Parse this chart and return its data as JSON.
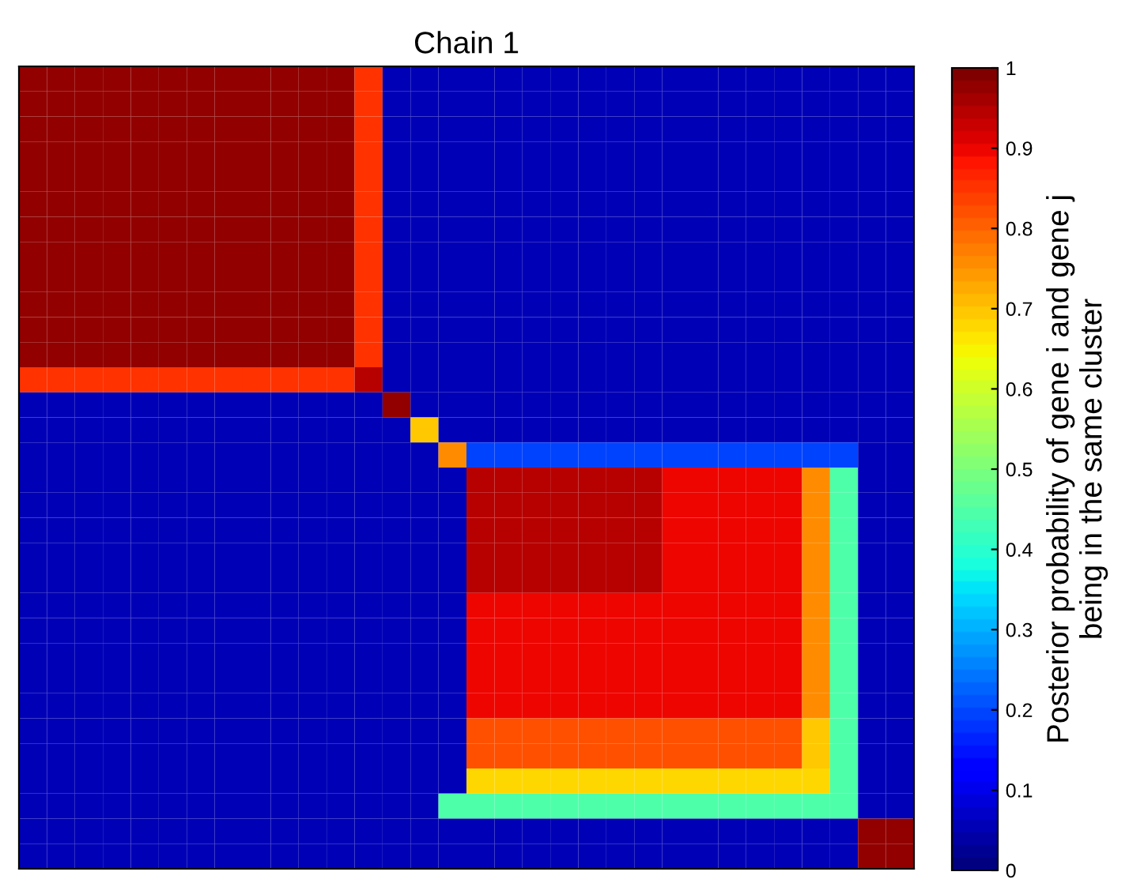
{
  "chart_data": {
    "type": "heatmap",
    "title": "Chain 1",
    "clabel": "Posterior probability of gene i and gene j\nbeing in the same cluster",
    "categories": [
      null,
      null,
      null,
      null,
      null,
      null,
      null,
      null,
      null,
      null,
      null,
      null,
      null,
      null,
      null,
      null,
      null,
      null,
      null,
      null,
      null,
      null,
      null,
      null,
      null,
      null,
      null,
      null,
      null,
      null,
      null,
      null
    ],
    "y_categories": [
      null,
      null,
      null,
      null,
      null,
      null,
      null,
      null,
      null,
      null,
      null,
      null,
      null,
      null,
      null,
      null,
      null,
      null,
      null,
      null,
      null,
      null,
      null,
      null,
      null,
      null,
      null,
      null,
      null,
      null,
      null,
      null
    ],
    "clim": [
      0,
      1
    ],
    "cticks": [
      0,
      0.1,
      0.2,
      0.3,
      0.4,
      0.5,
      0.6,
      0.7,
      0.8,
      0.9,
      1
    ],
    "tick_labels": false,
    "cells": [
      [
        0.97,
        0.97,
        0.97,
        0.97,
        0.97,
        0.97,
        0.97,
        0.97,
        0.97,
        0.97,
        0.97,
        0.97,
        0.85,
        0.05,
        0.05,
        0.05,
        0.05,
        0.05,
        0.05,
        0.05,
        0.05,
        0.05,
        0.05,
        0.05,
        0.05,
        0.05,
        0.05,
        0.05,
        0.05,
        0.05,
        0.05,
        0.05
      ],
      [
        0.97,
        0.97,
        0.97,
        0.97,
        0.97,
        0.97,
        0.97,
        0.97,
        0.97,
        0.97,
        0.97,
        0.97,
        0.85,
        0.05,
        0.05,
        0.05,
        0.05,
        0.05,
        0.05,
        0.05,
        0.05,
        0.05,
        0.05,
        0.05,
        0.05,
        0.05,
        0.05,
        0.05,
        0.05,
        0.05,
        0.05,
        0.05
      ],
      [
        0.97,
        0.97,
        0.97,
        0.97,
        0.97,
        0.97,
        0.97,
        0.97,
        0.97,
        0.97,
        0.97,
        0.97,
        0.85,
        0.05,
        0.05,
        0.05,
        0.05,
        0.05,
        0.05,
        0.05,
        0.05,
        0.05,
        0.05,
        0.05,
        0.05,
        0.05,
        0.05,
        0.05,
        0.05,
        0.05,
        0.05,
        0.05
      ],
      [
        0.97,
        0.97,
        0.97,
        0.97,
        0.97,
        0.97,
        0.97,
        0.97,
        0.97,
        0.97,
        0.97,
        0.97,
        0.85,
        0.05,
        0.05,
        0.05,
        0.05,
        0.05,
        0.05,
        0.05,
        0.05,
        0.05,
        0.05,
        0.05,
        0.05,
        0.05,
        0.05,
        0.05,
        0.05,
        0.05,
        0.05,
        0.05
      ],
      [
        0.97,
        0.97,
        0.97,
        0.97,
        0.97,
        0.97,
        0.97,
        0.97,
        0.97,
        0.97,
        0.97,
        0.97,
        0.85,
        0.05,
        0.05,
        0.05,
        0.05,
        0.05,
        0.05,
        0.05,
        0.05,
        0.05,
        0.05,
        0.05,
        0.05,
        0.05,
        0.05,
        0.05,
        0.05,
        0.05,
        0.05,
        0.05
      ],
      [
        0.97,
        0.97,
        0.97,
        0.97,
        0.97,
        0.97,
        0.97,
        0.97,
        0.97,
        0.97,
        0.97,
        0.97,
        0.85,
        0.05,
        0.05,
        0.05,
        0.05,
        0.05,
        0.05,
        0.05,
        0.05,
        0.05,
        0.05,
        0.05,
        0.05,
        0.05,
        0.05,
        0.05,
        0.05,
        0.05,
        0.05,
        0.05
      ],
      [
        0.97,
        0.97,
        0.97,
        0.97,
        0.97,
        0.97,
        0.97,
        0.97,
        0.97,
        0.97,
        0.97,
        0.97,
        0.85,
        0.05,
        0.05,
        0.05,
        0.05,
        0.05,
        0.05,
        0.05,
        0.05,
        0.05,
        0.05,
        0.05,
        0.05,
        0.05,
        0.05,
        0.05,
        0.05,
        0.05,
        0.05,
        0.05
      ],
      [
        0.97,
        0.97,
        0.97,
        0.97,
        0.97,
        0.97,
        0.97,
        0.97,
        0.97,
        0.97,
        0.97,
        0.97,
        0.85,
        0.05,
        0.05,
        0.05,
        0.05,
        0.05,
        0.05,
        0.05,
        0.05,
        0.05,
        0.05,
        0.05,
        0.05,
        0.05,
        0.05,
        0.05,
        0.05,
        0.05,
        0.05,
        0.05
      ],
      [
        0.97,
        0.97,
        0.97,
        0.97,
        0.97,
        0.97,
        0.97,
        0.97,
        0.97,
        0.97,
        0.97,
        0.97,
        0.85,
        0.05,
        0.05,
        0.05,
        0.05,
        0.05,
        0.05,
        0.05,
        0.05,
        0.05,
        0.05,
        0.05,
        0.05,
        0.05,
        0.05,
        0.05,
        0.05,
        0.05,
        0.05,
        0.05
      ],
      [
        0.97,
        0.97,
        0.97,
        0.97,
        0.97,
        0.97,
        0.97,
        0.97,
        0.97,
        0.97,
        0.97,
        0.97,
        0.85,
        0.05,
        0.05,
        0.05,
        0.05,
        0.05,
        0.05,
        0.05,
        0.05,
        0.05,
        0.05,
        0.05,
        0.05,
        0.05,
        0.05,
        0.05,
        0.05,
        0.05,
        0.05,
        0.05
      ],
      [
        0.97,
        0.97,
        0.97,
        0.97,
        0.97,
        0.97,
        0.97,
        0.97,
        0.97,
        0.97,
        0.97,
        0.97,
        0.85,
        0.05,
        0.05,
        0.05,
        0.05,
        0.05,
        0.05,
        0.05,
        0.05,
        0.05,
        0.05,
        0.05,
        0.05,
        0.05,
        0.05,
        0.05,
        0.05,
        0.05,
        0.05,
        0.05
      ],
      [
        0.97,
        0.97,
        0.97,
        0.97,
        0.97,
        0.97,
        0.97,
        0.97,
        0.97,
        0.97,
        0.97,
        0.97,
        0.85,
        0.05,
        0.05,
        0.05,
        0.05,
        0.05,
        0.05,
        0.05,
        0.05,
        0.05,
        0.05,
        0.05,
        0.05,
        0.05,
        0.05,
        0.05,
        0.05,
        0.05,
        0.05,
        0.05
      ],
      [
        0.85,
        0.85,
        0.85,
        0.85,
        0.85,
        0.85,
        0.85,
        0.85,
        0.85,
        0.85,
        0.85,
        0.85,
        0.95,
        0.05,
        0.05,
        0.05,
        0.05,
        0.05,
        0.05,
        0.05,
        0.05,
        0.05,
        0.05,
        0.05,
        0.05,
        0.05,
        0.05,
        0.05,
        0.05,
        0.05,
        0.05,
        0.05
      ],
      [
        0.05,
        0.05,
        0.05,
        0.05,
        0.05,
        0.05,
        0.05,
        0.05,
        0.05,
        0.05,
        0.05,
        0.05,
        0.05,
        0.97,
        0.05,
        0.05,
        0.05,
        0.05,
        0.05,
        0.05,
        0.05,
        0.05,
        0.05,
        0.05,
        0.05,
        0.05,
        0.05,
        0.05,
        0.05,
        0.05,
        0.05,
        0.05
      ],
      [
        0.05,
        0.05,
        0.05,
        0.05,
        0.05,
        0.05,
        0.05,
        0.05,
        0.05,
        0.05,
        0.05,
        0.05,
        0.05,
        0.05,
        0.7,
        0.05,
        0.05,
        0.05,
        0.05,
        0.05,
        0.05,
        0.05,
        0.05,
        0.05,
        0.05,
        0.05,
        0.05,
        0.05,
        0.05,
        0.05,
        0.05,
        0.05
      ],
      [
        0.05,
        0.05,
        0.05,
        0.05,
        0.05,
        0.05,
        0.05,
        0.05,
        0.05,
        0.05,
        0.05,
        0.05,
        0.05,
        0.05,
        0.05,
        0.75,
        0.2,
        0.2,
        0.2,
        0.2,
        0.2,
        0.2,
        0.2,
        0.2,
        0.2,
        0.2,
        0.2,
        0.2,
        0.2,
        0.2,
        0.05,
        0.05
      ],
      [
        0.05,
        0.05,
        0.05,
        0.05,
        0.05,
        0.05,
        0.05,
        0.05,
        0.05,
        0.05,
        0.05,
        0.05,
        0.05,
        0.05,
        0.05,
        0.05,
        0.95,
        0.95,
        0.95,
        0.95,
        0.95,
        0.95,
        0.95,
        0.9,
        0.9,
        0.9,
        0.9,
        0.9,
        0.75,
        0.45,
        0.05,
        0.05
      ],
      [
        0.05,
        0.05,
        0.05,
        0.05,
        0.05,
        0.05,
        0.05,
        0.05,
        0.05,
        0.05,
        0.05,
        0.05,
        0.05,
        0.05,
        0.05,
        0.05,
        0.95,
        0.95,
        0.95,
        0.95,
        0.95,
        0.95,
        0.95,
        0.9,
        0.9,
        0.9,
        0.9,
        0.9,
        0.75,
        0.45,
        0.05,
        0.05
      ],
      [
        0.05,
        0.05,
        0.05,
        0.05,
        0.05,
        0.05,
        0.05,
        0.05,
        0.05,
        0.05,
        0.05,
        0.05,
        0.05,
        0.05,
        0.05,
        0.05,
        0.95,
        0.95,
        0.95,
        0.95,
        0.95,
        0.95,
        0.95,
        0.9,
        0.9,
        0.9,
        0.9,
        0.9,
        0.75,
        0.45,
        0.05,
        0.05
      ],
      [
        0.05,
        0.05,
        0.05,
        0.05,
        0.05,
        0.05,
        0.05,
        0.05,
        0.05,
        0.05,
        0.05,
        0.05,
        0.05,
        0.05,
        0.05,
        0.05,
        0.95,
        0.95,
        0.95,
        0.95,
        0.95,
        0.95,
        0.95,
        0.9,
        0.9,
        0.9,
        0.9,
        0.9,
        0.75,
        0.45,
        0.05,
        0.05
      ],
      [
        0.05,
        0.05,
        0.05,
        0.05,
        0.05,
        0.05,
        0.05,
        0.05,
        0.05,
        0.05,
        0.05,
        0.05,
        0.05,
        0.05,
        0.05,
        0.05,
        0.95,
        0.95,
        0.95,
        0.95,
        0.95,
        0.95,
        0.95,
        0.9,
        0.9,
        0.9,
        0.9,
        0.9,
        0.75,
        0.45,
        0.05,
        0.05
      ],
      [
        0.05,
        0.05,
        0.05,
        0.05,
        0.05,
        0.05,
        0.05,
        0.05,
        0.05,
        0.05,
        0.05,
        0.05,
        0.05,
        0.05,
        0.05,
        0.05,
        0.9,
        0.9,
        0.9,
        0.9,
        0.9,
        0.9,
        0.9,
        0.9,
        0.9,
        0.9,
        0.9,
        0.9,
        0.75,
        0.45,
        0.05,
        0.05
      ],
      [
        0.05,
        0.05,
        0.05,
        0.05,
        0.05,
        0.05,
        0.05,
        0.05,
        0.05,
        0.05,
        0.05,
        0.05,
        0.05,
        0.05,
        0.05,
        0.05,
        0.9,
        0.9,
        0.9,
        0.9,
        0.9,
        0.9,
        0.9,
        0.9,
        0.9,
        0.9,
        0.9,
        0.9,
        0.75,
        0.45,
        0.05,
        0.05
      ],
      [
        0.05,
        0.05,
        0.05,
        0.05,
        0.05,
        0.05,
        0.05,
        0.05,
        0.05,
        0.05,
        0.05,
        0.05,
        0.05,
        0.05,
        0.05,
        0.05,
        0.9,
        0.9,
        0.9,
        0.9,
        0.9,
        0.9,
        0.9,
        0.9,
        0.9,
        0.9,
        0.9,
        0.9,
        0.75,
        0.45,
        0.05,
        0.05
      ],
      [
        0.05,
        0.05,
        0.05,
        0.05,
        0.05,
        0.05,
        0.05,
        0.05,
        0.05,
        0.05,
        0.05,
        0.05,
        0.05,
        0.05,
        0.05,
        0.05,
        0.9,
        0.9,
        0.9,
        0.9,
        0.9,
        0.9,
        0.9,
        0.9,
        0.9,
        0.9,
        0.9,
        0.9,
        0.75,
        0.45,
        0.05,
        0.05
      ],
      [
        0.05,
        0.05,
        0.05,
        0.05,
        0.05,
        0.05,
        0.05,
        0.05,
        0.05,
        0.05,
        0.05,
        0.05,
        0.05,
        0.05,
        0.05,
        0.05,
        0.9,
        0.9,
        0.9,
        0.9,
        0.9,
        0.9,
        0.9,
        0.9,
        0.9,
        0.9,
        0.9,
        0.9,
        0.75,
        0.45,
        0.05,
        0.05
      ],
      [
        0.05,
        0.05,
        0.05,
        0.05,
        0.05,
        0.05,
        0.05,
        0.05,
        0.05,
        0.05,
        0.05,
        0.05,
        0.05,
        0.05,
        0.05,
        0.05,
        0.82,
        0.82,
        0.82,
        0.82,
        0.82,
        0.82,
        0.82,
        0.82,
        0.82,
        0.82,
        0.82,
        0.82,
        0.7,
        0.45,
        0.05,
        0.05
      ],
      [
        0.05,
        0.05,
        0.05,
        0.05,
        0.05,
        0.05,
        0.05,
        0.05,
        0.05,
        0.05,
        0.05,
        0.05,
        0.05,
        0.05,
        0.05,
        0.05,
        0.82,
        0.82,
        0.82,
        0.82,
        0.82,
        0.82,
        0.82,
        0.82,
        0.82,
        0.82,
        0.82,
        0.82,
        0.7,
        0.45,
        0.05,
        0.05
      ],
      [
        0.05,
        0.05,
        0.05,
        0.05,
        0.05,
        0.05,
        0.05,
        0.05,
        0.05,
        0.05,
        0.05,
        0.05,
        0.05,
        0.05,
        0.05,
        0.05,
        0.68,
        0.68,
        0.68,
        0.68,
        0.68,
        0.68,
        0.68,
        0.68,
        0.68,
        0.68,
        0.68,
        0.68,
        0.68,
        0.45,
        0.05,
        0.05
      ],
      [
        0.05,
        0.05,
        0.05,
        0.05,
        0.05,
        0.05,
        0.05,
        0.05,
        0.05,
        0.05,
        0.05,
        0.05,
        0.05,
        0.05,
        0.05,
        0.45,
        0.45,
        0.45,
        0.45,
        0.45,
        0.45,
        0.45,
        0.45,
        0.45,
        0.45,
        0.45,
        0.45,
        0.45,
        0.45,
        0.45,
        0.05,
        0.05
      ],
      [
        0.05,
        0.05,
        0.05,
        0.05,
        0.05,
        0.05,
        0.05,
        0.05,
        0.05,
        0.05,
        0.05,
        0.05,
        0.05,
        0.05,
        0.05,
        0.05,
        0.05,
        0.05,
        0.05,
        0.05,
        0.05,
        0.05,
        0.05,
        0.05,
        0.05,
        0.05,
        0.05,
        0.05,
        0.05,
        0.05,
        0.97,
        0.97
      ],
      [
        0.05,
        0.05,
        0.05,
        0.05,
        0.05,
        0.05,
        0.05,
        0.05,
        0.05,
        0.05,
        0.05,
        0.05,
        0.05,
        0.05,
        0.05,
        0.05,
        0.05,
        0.05,
        0.05,
        0.05,
        0.05,
        0.05,
        0.05,
        0.05,
        0.05,
        0.05,
        0.05,
        0.05,
        0.05,
        0.05,
        0.97,
        0.97
      ]
    ]
  }
}
